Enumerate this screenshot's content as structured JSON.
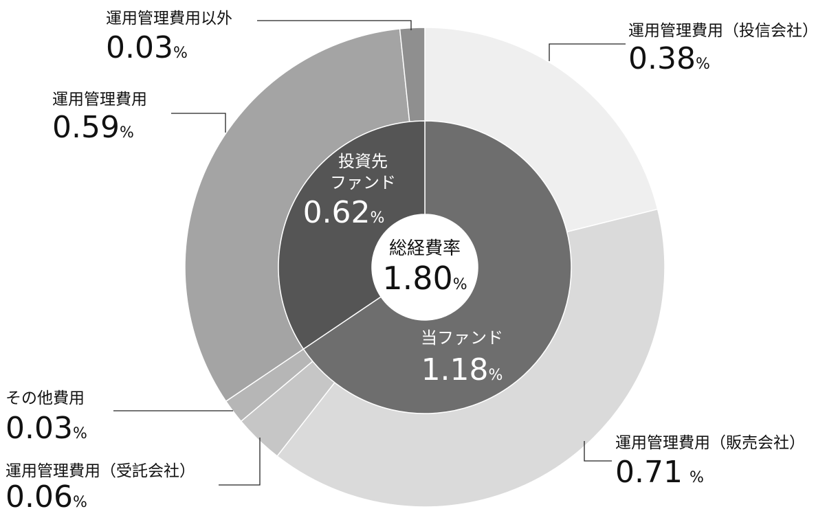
{
  "chart_data": {
    "type": "donut",
    "center": {
      "label": "総経費率",
      "value": "1.80",
      "unit": "%"
    },
    "inner_ring": [
      {
        "label": "当ファンド",
        "value": 1.18,
        "display": "1.18",
        "unit": "%",
        "color": "#6e6e6e"
      },
      {
        "label": "投資先ファンド",
        "label_lines": [
          "投資先",
          "ファンド"
        ],
        "value": 0.62,
        "display": "0.62",
        "unit": "%",
        "color": "#555555"
      }
    ],
    "outer_ring": [
      {
        "label": "運用管理費用（投信会社）",
        "value": 0.38,
        "display": "0.38",
        "unit": "%",
        "color": "#efefef"
      },
      {
        "label": "運用管理費用（販売会社）",
        "value": 0.71,
        "display": "0.71",
        "unit": "%",
        "color": "#dadada"
      },
      {
        "label": "運用管理費用（受託会社）",
        "value": 0.06,
        "display": "0.06",
        "unit": "%",
        "color": "#c6c6c6"
      },
      {
        "label": "その他費用",
        "value": 0.03,
        "display": "0.03",
        "unit": "%",
        "color": "#b6b6b6"
      },
      {
        "label": "運用管理費用",
        "value": 0.59,
        "display": "0.59",
        "unit": "%",
        "color": "#a4a4a4"
      },
      {
        "label": "運用管理費用以外",
        "value": 0.03,
        "display": "0.03",
        "unit": "%",
        "color": "#8f8f8f"
      }
    ]
  }
}
